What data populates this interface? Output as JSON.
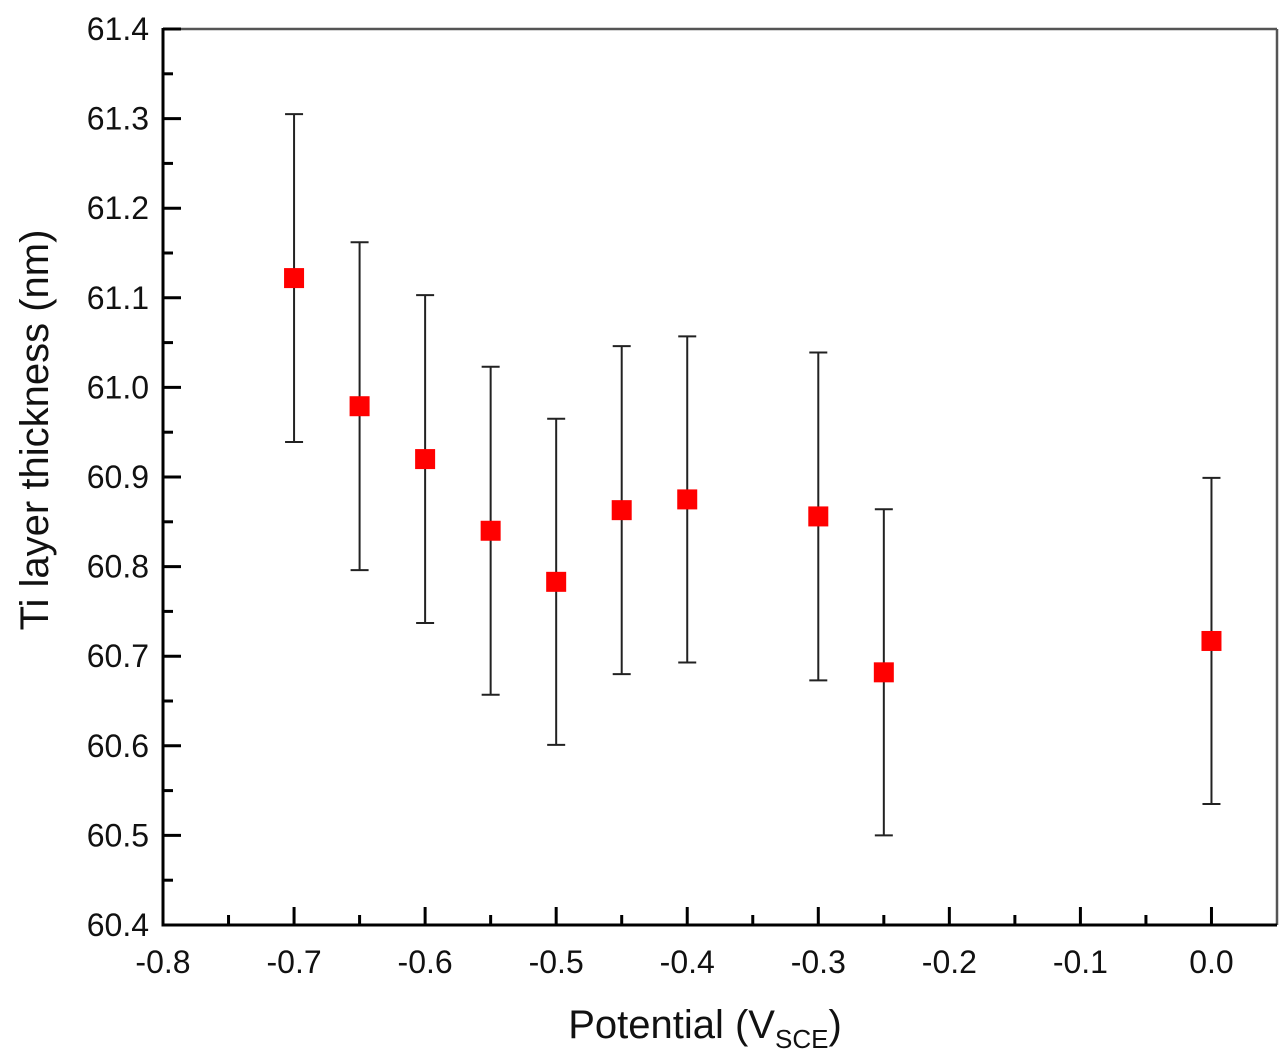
{
  "chart_data": {
    "type": "scatter",
    "title": "",
    "xlabel": "Potential (V",
    "xlabel_sub": "SCE",
    "xlabel_end": ")",
    "ylabel": "Ti layer thickness (nm)",
    "xlim": [
      -0.8,
      0.05
    ],
    "ylim": [
      60.4,
      61.4
    ],
    "grid": false,
    "legend": "none",
    "x_ticks": [
      "-0.8",
      "-0.7",
      "-0.6",
      "-0.5",
      "-0.4",
      "-0.3",
      "-0.2",
      "-0.1",
      "0.0"
    ],
    "y_ticks": [
      "60.4",
      "60.5",
      "60.6",
      "60.7",
      "60.8",
      "60.9",
      "61.0",
      "61.1",
      "61.2",
      "61.3",
      "61.4"
    ],
    "marker_color": "#ff0000",
    "series": [
      {
        "name": "Ti layer thickness",
        "x": [
          -0.7,
          -0.65,
          -0.6,
          -0.55,
          -0.5,
          -0.45,
          -0.4,
          -0.3,
          -0.25,
          0.0
        ],
        "y": [
          61.122,
          60.979,
          60.92,
          60.84,
          60.783,
          60.863,
          60.875,
          60.856,
          60.682,
          60.717
        ],
        "err": [
          0.183,
          0.183,
          0.183,
          0.183,
          0.182,
          0.183,
          0.182,
          0.183,
          0.182,
          0.182
        ]
      }
    ]
  }
}
